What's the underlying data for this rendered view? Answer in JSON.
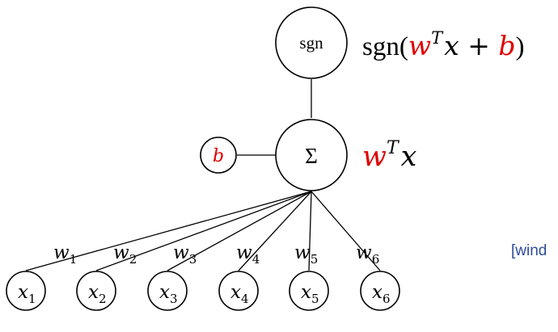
{
  "colors": {
    "highlight": "#e00000",
    "link_text": "#2e4d9a"
  },
  "output_node": {
    "label": "sgn"
  },
  "output_expr": {
    "prefix": "sgn(",
    "w": "w",
    "sup": "T",
    "mid": "x + ",
    "b": "b",
    "suffix": ")"
  },
  "sum_node": {
    "label": "Σ"
  },
  "sum_expr": {
    "w": "w",
    "sup": "T",
    "x": "x"
  },
  "bias_node": {
    "label": "b"
  },
  "weights": [
    {
      "base": "w",
      "sub": "1"
    },
    {
      "base": "w",
      "sub": "2"
    },
    {
      "base": "w",
      "sub": "3"
    },
    {
      "base": "w",
      "sub": "4"
    },
    {
      "base": "w",
      "sub": "5"
    },
    {
      "base": "w",
      "sub": "6"
    }
  ],
  "inputs": [
    {
      "base": "x",
      "sub": "1"
    },
    {
      "base": "x",
      "sub": "2"
    },
    {
      "base": "x",
      "sub": "3"
    },
    {
      "base": "x",
      "sub": "4"
    },
    {
      "base": "x",
      "sub": "5"
    },
    {
      "base": "x",
      "sub": "6"
    }
  ],
  "side_label": "[wind"
}
